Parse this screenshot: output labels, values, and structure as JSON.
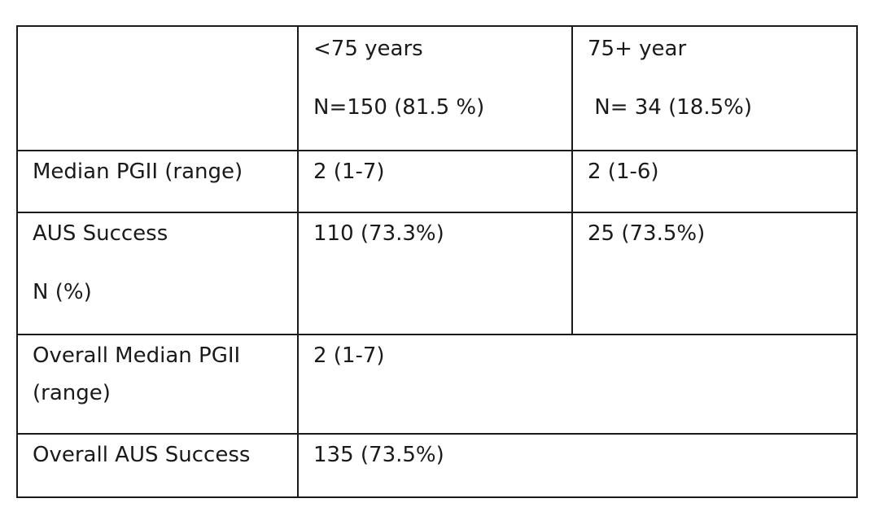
{
  "table": {
    "header": {
      "col1": "",
      "col2_line1": "<75 years",
      "col2_line2": "N=150 (81.5 %)",
      "col3_line1": "75+ year",
      "col3_line2": " N= 34 (18.5%)"
    },
    "rows": [
      {
        "label": "Median PGII (range)",
        "col2": "2 (1-7)",
        "col3": "2 (1-6)"
      },
      {
        "label_line1": "AUS Success",
        "label_line2": "N (%)",
        "col2": "110 (73.3%)",
        "col3": "25 (73.5%)"
      },
      {
        "label_line1": "Overall Median PGII",
        "label_line2": "(range)",
        "value": "2 (1-7)"
      },
      {
        "label": "Overall AUS Success",
        "value": "135 (73.5%)"
      }
    ]
  }
}
